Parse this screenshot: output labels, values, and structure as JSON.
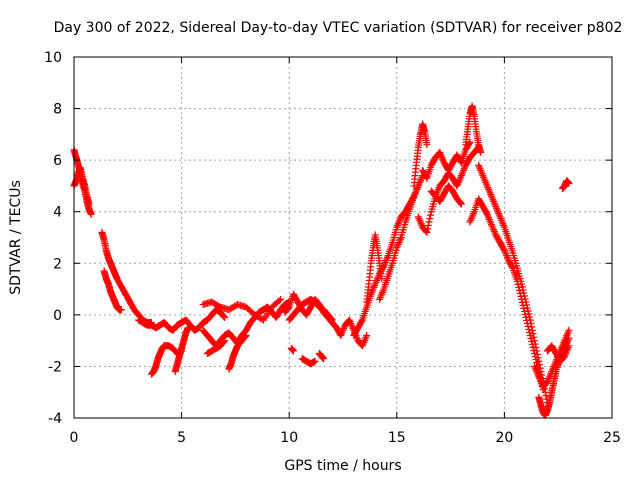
{
  "chart_data": {
    "type": "scatter",
    "title": "Day 300 of 2022, Sidereal Day-to-day VTEC variation (SDTVAR) for receiver p802",
    "xlabel": "GPS time / hours",
    "ylabel": "SDTVAR / TECUs",
    "xlim": [
      0,
      25
    ],
    "ylim": [
      -4,
      10
    ],
    "xticks": [
      0,
      5,
      10,
      15,
      20,
      25
    ],
    "yticks": [
      -4,
      -2,
      0,
      2,
      4,
      6,
      8,
      10
    ],
    "xtick_labels": [
      "0",
      "5",
      "10",
      "15",
      "20",
      "25"
    ],
    "ytick_labels": [
      "-4",
      "-2",
      "0",
      "2",
      "4",
      "6",
      "8",
      "10"
    ],
    "grid": true,
    "marker": "+",
    "series": [
      {
        "name": "SDTVAR",
        "color": "#ff0000",
        "segments": [
          {
            "x": [
              0.0,
              0.1,
              0.2,
              0.3,
              0.4,
              0.5,
              0.6,
              0.7,
              0.8
            ],
            "y": [
              6.4,
              6.1,
              5.8,
              5.5,
              5.1,
              4.8,
              4.4,
              4.1,
              3.9
            ]
          },
          {
            "x": [
              0.0,
              0.1,
              0.2,
              0.3,
              0.4,
              0.5,
              0.6,
              0.7
            ],
            "y": [
              5.0,
              5.2,
              5.5,
              5.7,
              5.3,
              5.0,
              4.6,
              4.3
            ]
          },
          {
            "x": [
              1.3,
              1.4,
              1.5,
              1.6,
              1.7,
              1.8,
              1.9,
              2.0,
              2.2,
              2.4,
              2.6,
              2.8,
              3.0,
              3.2,
              3.4,
              3.6
            ],
            "y": [
              3.2,
              2.9,
              2.5,
              2.2,
              2.0,
              1.8,
              1.6,
              1.4,
              1.1,
              0.8,
              0.5,
              0.2,
              0.0,
              -0.2,
              -0.3,
              -0.3
            ]
          },
          {
            "x": [
              1.4,
              1.5,
              1.6,
              1.7,
              1.8,
              1.9,
              2.0,
              2.1,
              2.2
            ],
            "y": [
              1.7,
              1.4,
              1.2,
              0.9,
              0.7,
              0.5,
              0.3,
              0.2,
              0.2
            ]
          },
          {
            "x": [
              3.0,
              3.2,
              3.4,
              3.6,
              3.8,
              4.0,
              4.2,
              4.4,
              4.6,
              4.8,
              5.0,
              5.2,
              5.4,
              5.6,
              5.8,
              6.0,
              6.2,
              6.4,
              6.6,
              6.8,
              7.0
            ],
            "y": [
              -0.2,
              -0.3,
              -0.4,
              -0.4,
              -0.5,
              -0.4,
              -0.3,
              -0.5,
              -0.6,
              -0.4,
              -0.3,
              -0.2,
              -0.4,
              -0.6,
              -0.5,
              -0.3,
              -0.2,
              0.0,
              0.2,
              0.1,
              -0.1
            ]
          },
          {
            "x": [
              3.6,
              3.7,
              3.8,
              3.9,
              4.0,
              4.1,
              4.2,
              4.4,
              4.6,
              4.8,
              5.0
            ],
            "y": [
              -2.3,
              -2.2,
              -2.0,
              -1.7,
              -1.5,
              -1.3,
              -1.2,
              -1.2,
              -1.3,
              -1.5,
              -1.4
            ]
          },
          {
            "x": [
              4.7,
              4.8,
              4.9,
              5.0,
              5.1,
              5.2,
              5.3
            ],
            "y": [
              -2.2,
              -1.9,
              -1.6,
              -1.3,
              -1.0,
              -0.7,
              -0.5
            ]
          },
          {
            "x": [
              6.0,
              6.2,
              6.4,
              6.6,
              6.8,
              7.0,
              7.2,
              7.4,
              7.6,
              7.8,
              8.0,
              8.2,
              8.4,
              8.6,
              8.8,
              9.0,
              9.2,
              9.4,
              9.6,
              9.8,
              10.0
            ],
            "y": [
              -0.6,
              -0.8,
              -1.0,
              -1.2,
              -1.0,
              -0.8,
              -0.7,
              -0.9,
              -1.1,
              -0.8,
              -0.6,
              -0.3,
              -0.1,
              0.1,
              0.2,
              0.3,
              0.1,
              -0.1,
              0.2,
              0.4,
              0.5
            ]
          },
          {
            "x": [
              6.2,
              6.4,
              6.6,
              6.8,
              7.0
            ],
            "y": [
              -1.5,
              -1.4,
              -1.3,
              -1.2,
              -1.0
            ]
          },
          {
            "x": [
              7.2,
              7.3,
              7.4,
              7.5,
              7.6,
              7.8,
              8.0
            ],
            "y": [
              -2.1,
              -1.9,
              -1.6,
              -1.4,
              -1.2,
              -1.0,
              -0.8
            ]
          },
          {
            "x": [
              6.0,
              6.4,
              6.8,
              7.2,
              7.6,
              8.0,
              8.4,
              8.8,
              9.2,
              9.6
            ],
            "y": [
              0.4,
              0.5,
              0.3,
              0.2,
              0.4,
              0.3,
              0.0,
              -0.2,
              0.3,
              0.6
            ]
          },
          {
            "x": [
              9.8,
              10.0,
              10.2,
              10.4,
              10.6,
              10.8,
              11.0,
              11.2,
              11.4,
              11.6,
              11.8,
              12.0,
              12.2,
              12.4,
              12.6,
              12.8,
              13.0,
              13.2,
              13.4,
              13.6
            ],
            "y": [
              0.1,
              0.3,
              0.8,
              0.5,
              0.2,
              0.0,
              0.3,
              0.6,
              0.4,
              0.1,
              -0.1,
              -0.3,
              -0.5,
              -0.8,
              -0.4,
              -0.2,
              -0.6,
              -1.0,
              -1.2,
              -0.8
            ]
          },
          {
            "x": [
              10.0,
              10.2,
              10.4,
              10.6,
              10.8,
              11.0,
              11.2,
              11.4,
              11.6,
              11.8,
              12.0
            ],
            "y": [
              -0.2,
              0.0,
              0.2,
              0.4,
              0.5,
              0.6,
              0.5,
              0.3,
              0.2,
              0.0,
              -0.2
            ]
          },
          {
            "x": [
              10.6,
              10.8,
              11.0,
              11.2
            ],
            "y": [
              -1.7,
              -1.8,
              -1.9,
              -1.8
            ]
          },
          {
            "x": [
              10.1,
              10.2
            ],
            "y": [
              -1.3,
              -1.4
            ]
          },
          {
            "x": [
              11.4,
              11.5,
              11.6
            ],
            "y": [
              -1.5,
              -1.6,
              -1.7
            ]
          },
          {
            "x": [
              13.0,
              13.2,
              13.4,
              13.6,
              13.8,
              14.0,
              14.2,
              14.4,
              14.6,
              14.8,
              15.0,
              15.2,
              15.4,
              15.6,
              15.8,
              16.0,
              16.2
            ],
            "y": [
              -0.8,
              -0.5,
              -0.2,
              0.3,
              0.8,
              1.2,
              1.6,
              1.9,
              2.3,
              2.8,
              3.4,
              3.8,
              4.0,
              4.3,
              4.6,
              5.0,
              5.4
            ]
          },
          {
            "x": [
              13.6,
              13.7,
              13.8,
              13.9,
              14.0,
              14.1,
              14.2,
              14.3
            ],
            "y": [
              0.5,
              1.2,
              2.0,
              2.6,
              3.1,
              2.6,
              2.0,
              1.4
            ]
          },
          {
            "x": [
              14.2,
              14.4,
              14.6,
              14.8,
              15.0,
              15.2,
              15.4,
              15.6,
              15.8,
              16.0
            ],
            "y": [
              0.6,
              1.0,
              1.5,
              2.0,
              2.6,
              3.0,
              3.6,
              4.1,
              4.6,
              5.0
            ]
          },
          {
            "x": [
              15.8,
              15.9,
              16.0,
              16.1,
              16.2,
              16.3,
              16.4
            ],
            "y": [
              5.0,
              5.8,
              6.5,
              7.0,
              7.4,
              7.1,
              6.6
            ]
          },
          {
            "x": [
              16.0,
              16.2,
              16.4,
              16.6,
              16.8,
              17.0,
              17.2,
              17.4,
              17.6,
              17.8,
              18.0,
              18.2,
              18.4,
              18.6,
              18.8
            ],
            "y": [
              3.8,
              3.4,
              3.2,
              4.0,
              4.6,
              5.0,
              5.2,
              5.5,
              5.3,
              5.0,
              5.4,
              5.8,
              6.1,
              6.3,
              6.5
            ]
          },
          {
            "x": [
              16.2,
              16.4,
              16.6,
              16.8,
              17.0,
              17.2,
              17.4,
              17.6,
              17.8,
              18.0,
              18.2,
              18.4
            ],
            "y": [
              5.6,
              5.3,
              5.8,
              6.1,
              6.3,
              5.9,
              5.6,
              5.9,
              6.2,
              5.9,
              6.4,
              6.7
            ]
          },
          {
            "x": [
              16.6,
              16.8,
              17.0,
              17.2,
              17.4,
              17.6,
              17.8,
              18.0
            ],
            "y": [
              4.8,
              4.6,
              4.4,
              4.7,
              5.0,
              4.8,
              4.5,
              4.3
            ]
          },
          {
            "x": [
              18.2,
              18.3,
              18.4,
              18.5,
              18.6,
              18.7,
              18.8,
              18.9
            ],
            "y": [
              6.6,
              7.2,
              7.8,
              8.1,
              7.7,
              7.1,
              6.6,
              6.3
            ]
          },
          {
            "x": [
              18.4,
              18.6,
              18.8,
              19.0,
              19.2,
              19.4,
              19.6,
              19.8,
              20.0,
              20.2,
              20.4,
              20.6,
              20.8,
              21.0,
              21.2,
              21.4,
              21.6,
              21.8
            ],
            "y": [
              3.6,
              4.0,
              4.5,
              4.2,
              3.9,
              3.5,
              3.1,
              2.8,
              2.5,
              2.1,
              1.8,
              1.3,
              0.6,
              -0.1,
              -0.8,
              -1.5,
              -2.2,
              -2.9
            ]
          },
          {
            "x": [
              18.8,
              19.0,
              19.2,
              19.4,
              19.6,
              19.8,
              20.0,
              20.2,
              20.4,
              20.6,
              20.8,
              21.0,
              21.2,
              21.4,
              21.6,
              21.8,
              22.0
            ],
            "y": [
              5.8,
              5.4,
              5.0,
              4.6,
              4.2,
              3.8,
              3.4,
              2.9,
              2.4,
              1.8,
              1.2,
              0.5,
              -0.2,
              -1.0,
              -1.8,
              -2.6,
              -3.4
            ]
          },
          {
            "x": [
              21.4,
              21.6,
              21.8,
              22.0,
              22.2,
              22.4,
              22.6,
              22.8,
              23.0
            ],
            "y": [
              -2.0,
              -2.4,
              -2.8,
              -2.6,
              -2.2,
              -1.8,
              -1.4,
              -1.0,
              -0.6
            ]
          },
          {
            "x": [
              21.6,
              21.7,
              21.8,
              21.9,
              22.0,
              22.1,
              22.2,
              22.3,
              22.4,
              22.6,
              22.8,
              23.0
            ],
            "y": [
              -3.2,
              -3.5,
              -3.8,
              -3.9,
              -3.7,
              -3.4,
              -3.0,
              -2.6,
              -2.2,
              -1.7,
              -1.3,
              -0.9
            ]
          },
          {
            "x": [
              22.0,
              22.2,
              22.4,
              22.6,
              22.8,
              23.0
            ],
            "y": [
              -1.4,
              -1.2,
              -1.5,
              -1.8,
              -1.6,
              -1.2
            ]
          },
          {
            "x": [
              22.7,
              22.8,
              22.9,
              23.0
            ],
            "y": [
              4.9,
              5.0,
              5.2,
              5.1
            ]
          }
        ]
      }
    ]
  }
}
